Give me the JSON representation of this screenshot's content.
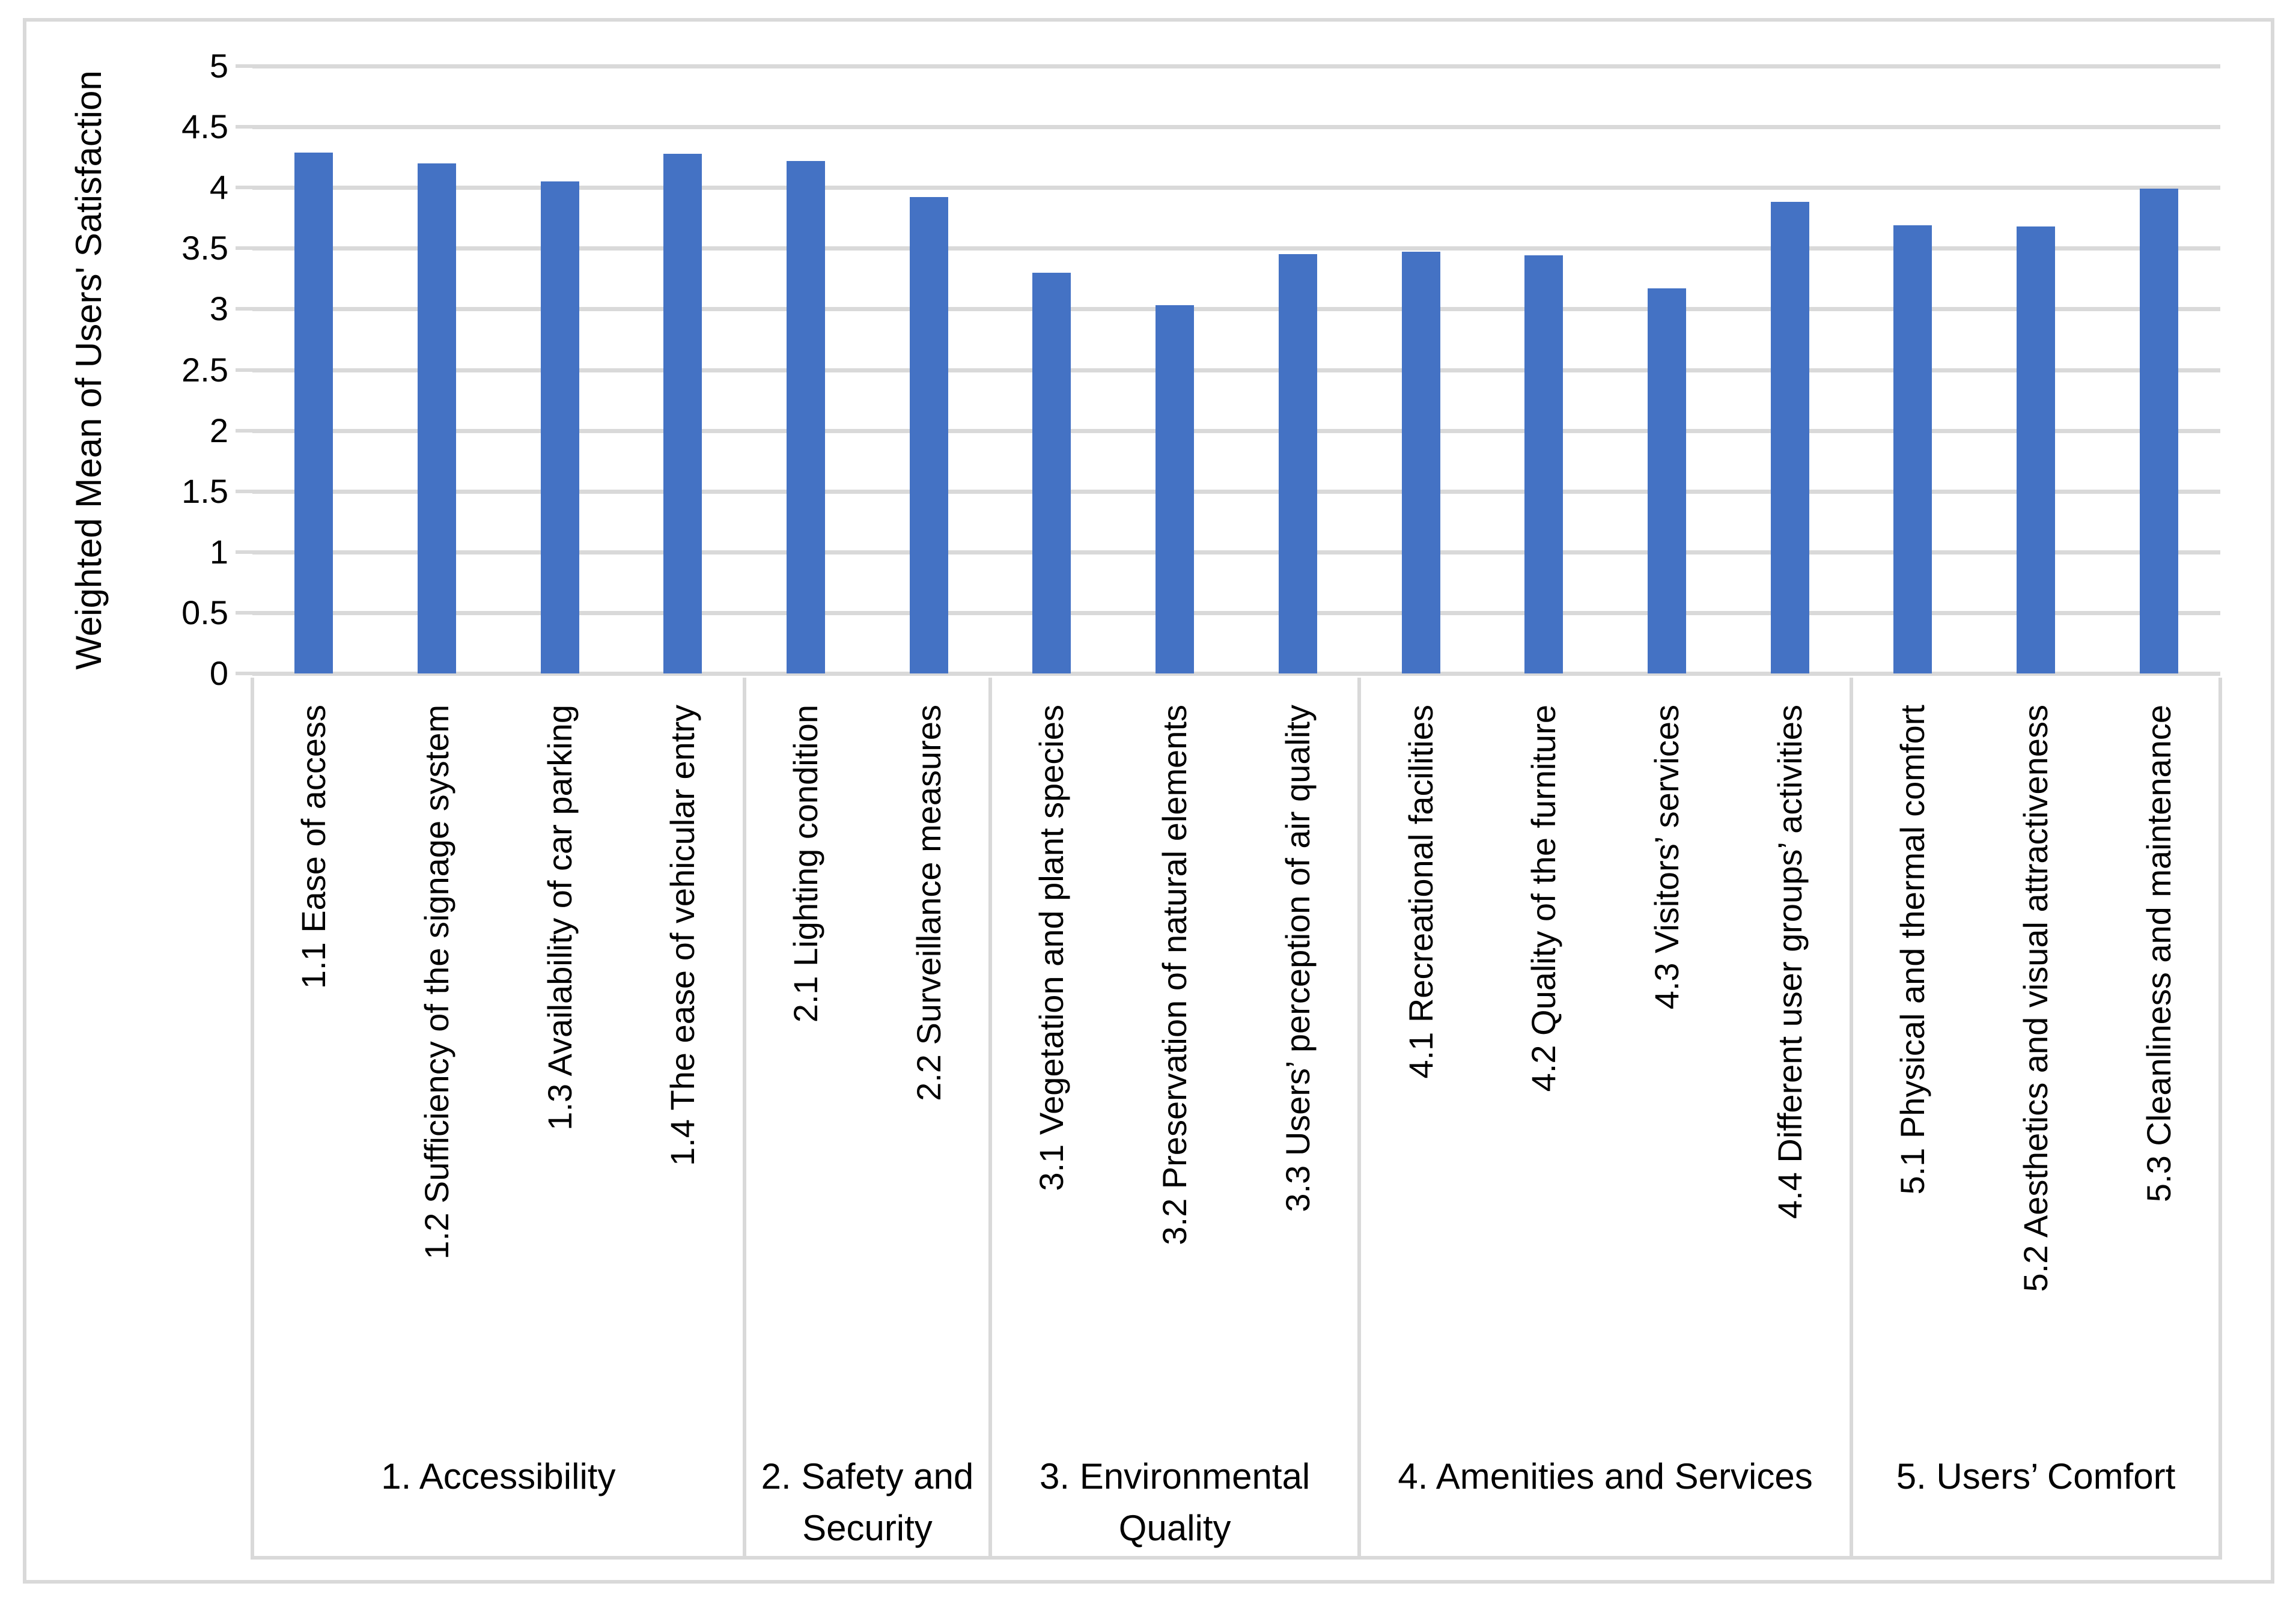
{
  "chart_data": {
    "type": "bar",
    "title": "",
    "xlabel": "",
    "ylabel": "Weighted Mean of Users' Satisfaction",
    "ylim": [
      0,
      5
    ],
    "ytick_interval": 0.5,
    "yticks": [
      "0",
      "0.5",
      "1",
      "1.5",
      "2",
      "2.5",
      "3",
      "3.5",
      "4",
      "4.5",
      "5"
    ],
    "grid": true,
    "legend": false,
    "bar_color": "#4472C4",
    "gridline_color": "#D9D9D9",
    "border_color": "#D9D9D9",
    "groups": [
      {
        "label": "1. Accessibility",
        "categories": [
          "1.1 Ease of access",
          "1.2 Sufficiency of the signage system",
          "1.3 Availability of car parking",
          "1.4 The ease of vehicular entry"
        ],
        "values": [
          4.29,
          4.2,
          4.05,
          4.28
        ]
      },
      {
        "label": "2. Safety and Security",
        "categories": [
          "2.1 Lighting condition",
          "2.2 Surveillance measures"
        ],
        "values": [
          4.22,
          3.92
        ]
      },
      {
        "label": "3. Environmental Quality",
        "categories": [
          "3.1 Vegetation and plant species",
          "3.2 Preservation of natural elements",
          "3.3 Users’ perception of air quality"
        ],
        "values": [
          3.3,
          3.03,
          3.45
        ]
      },
      {
        "label": "4. Amenities and Services",
        "categories": [
          "4.1 Recreational facilities",
          "4.2 Quality of the furniture",
          "4.3 Visitors’ services",
          "4.4 Different user groups’ activities"
        ],
        "values": [
          3.47,
          3.44,
          3.17,
          3.88
        ]
      },
      {
        "label": "5. Users’ Comfort",
        "categories": [
          "5.1 Physical and thermal comfort",
          "5.2 Aesthetics and visual attractiveness",
          "5.3 Cleanliness and maintenance"
        ],
        "values": [
          3.69,
          3.68,
          3.99
        ]
      }
    ]
  }
}
